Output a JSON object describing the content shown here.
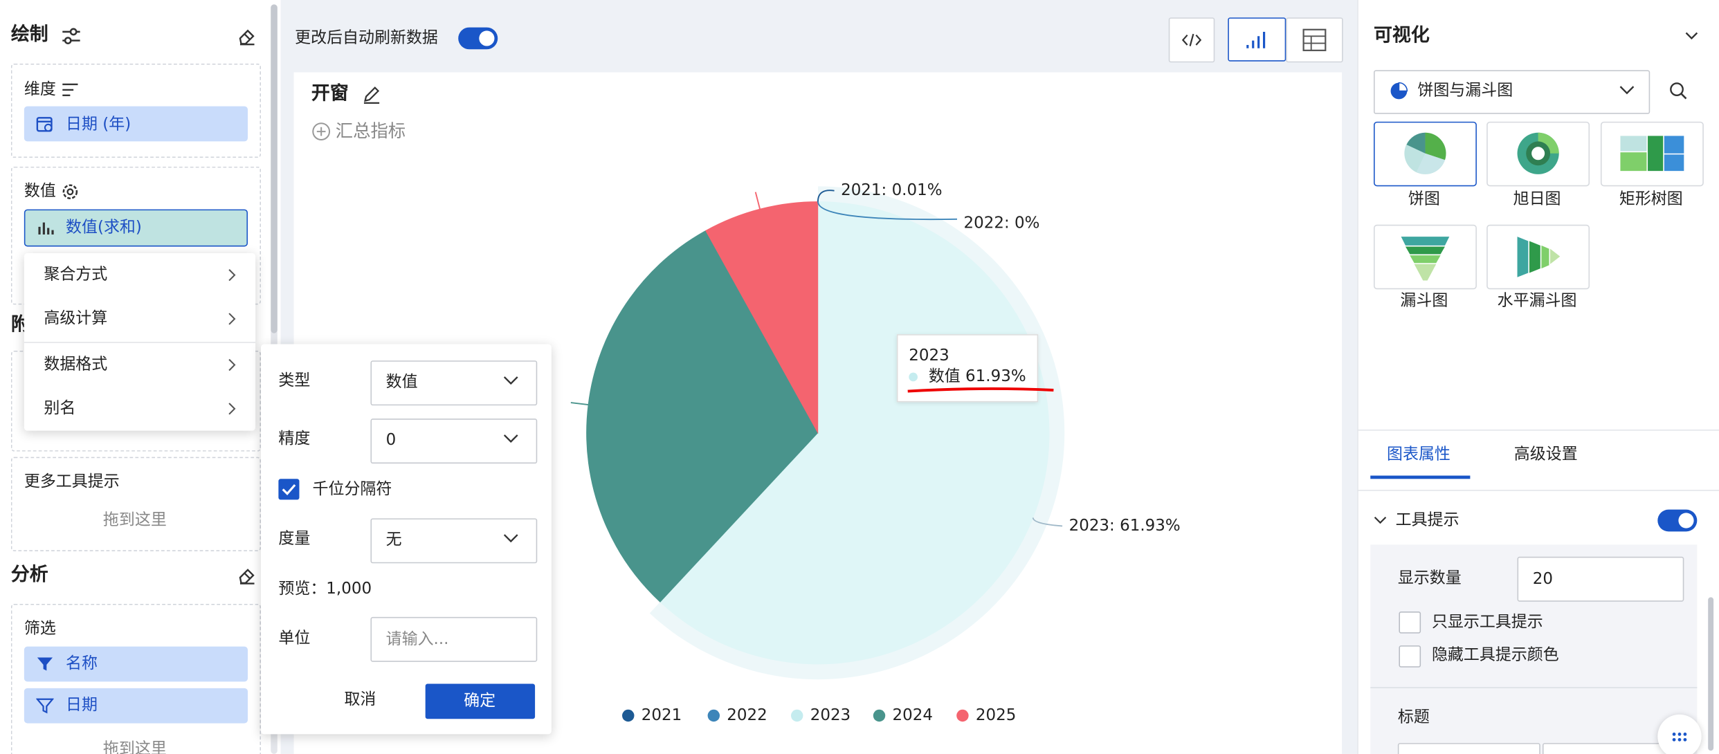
{
  "left_panel": {
    "draw_title": "绘制",
    "dimension_label": "维度",
    "dimension_field": "日期 (年)",
    "value_label": "数值",
    "value_field": "数值(求和)",
    "menu": [
      "聚合方式",
      "高级计算",
      "数据格式",
      "别名"
    ],
    "hidden_section_label": "附",
    "more_tooltip_label": "更多工具提示",
    "drop_hint": "拖到这里",
    "analysis_title": "分析",
    "filter_label": "筛选",
    "filters": [
      "名称",
      "日期"
    ],
    "filter_drop_hint": "拖到这里"
  },
  "format_popup": {
    "type_label": "类型",
    "type_value": "数值",
    "precision_label": "精度",
    "precision_value": "0",
    "thousands_separator": "千位分隔符",
    "measure_label": "度量",
    "measure_value": "无",
    "preview": "预览：1,000",
    "unit_label": "单位",
    "unit_placeholder": "请输入...",
    "cancel": "取消",
    "confirm": "确定"
  },
  "toolbar": {
    "auto_refresh": "更改后自动刷新数据"
  },
  "chart_card": {
    "title": "开窗",
    "add_metric": "汇总指标"
  },
  "chart_data": {
    "type": "pie",
    "categories": [
      "2021",
      "2022",
      "2023",
      "2024",
      "2025"
    ],
    "values": [
      0.01,
      0,
      61.93,
      30.0,
      8.06
    ],
    "value_labels": [
      "2021: 0.01%",
      "2022: 0%",
      "2023: 61.93%",
      null,
      null
    ],
    "colors": [
      "#1d5a94",
      "#3d85b9",
      "#dff6f7",
      "#49948c",
      "#f4646f"
    ],
    "legend_colors": [
      "#1d5a94",
      "#3d85b9",
      "#c5ecef",
      "#49948c",
      "#f4646f"
    ],
    "tooltip": {
      "title": "2023",
      "label": "数值 61.93%"
    }
  },
  "right_panel": {
    "title": "可视化",
    "chart_group": "饼图与漏斗图",
    "chart_types": [
      "饼图",
      "旭日图",
      "矩形树图",
      "漏斗图",
      "水平漏斗图"
    ],
    "tabs": [
      "图表属性",
      "高级设置"
    ],
    "tooltip_section": "工具提示",
    "show_count_label": "显示数量",
    "show_count_value": "20",
    "only_tooltip": "只显示工具提示",
    "hide_tooltip_color": "隐藏工具提示颜色",
    "title_section": "标题"
  }
}
